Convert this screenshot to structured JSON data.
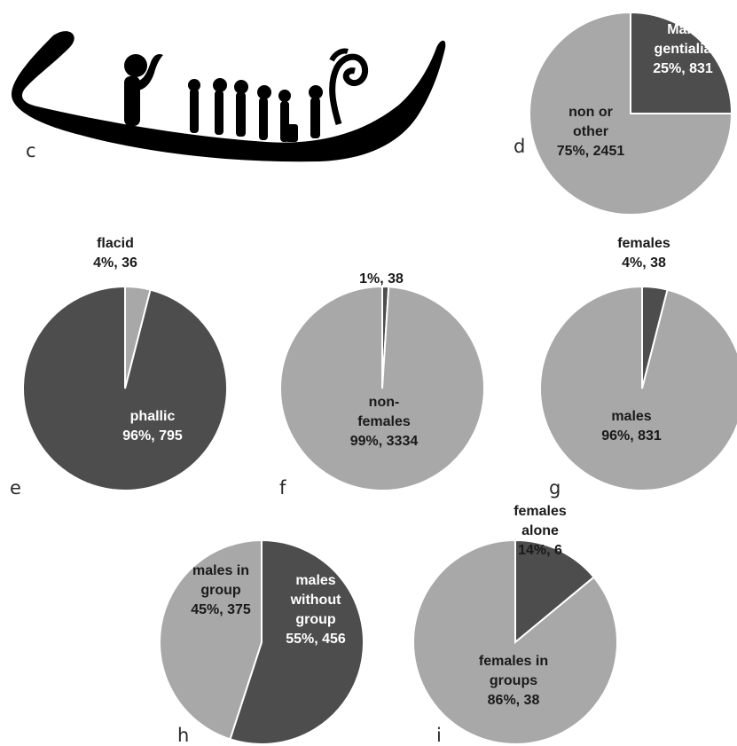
{
  "colors": {
    "dark": "#4d4d4d",
    "light": "#a8a8a8",
    "edge": "#ffffff",
    "boat": "#000000"
  },
  "panels": {
    "c": "c",
    "d": "d",
    "e": "e",
    "f": "f",
    "g": "g",
    "h": "h",
    "i": "i"
  },
  "chart_data": [
    {
      "panel": "d",
      "type": "pie",
      "slices": [
        {
          "lines": [
            "Male",
            "gentialia",
            "25%, 831"
          ],
          "value": 831,
          "percent": 25,
          "color": "dark"
        },
        {
          "lines": [
            "non or",
            "other",
            "75%, 2451"
          ],
          "value": 2451,
          "percent": 75,
          "color": "light"
        }
      ]
    },
    {
      "panel": "e",
      "type": "pie",
      "slices": [
        {
          "lines": [
            "flacid",
            "4%, 36"
          ],
          "value": 36,
          "percent": 4,
          "color": "light"
        },
        {
          "lines": [
            "phallic",
            "96%, 795"
          ],
          "value": 795,
          "percent": 96,
          "color": "dark"
        }
      ]
    },
    {
      "panel": "f",
      "type": "pie",
      "slices": [
        {
          "lines": [
            "1%, 38"
          ],
          "value": 38,
          "percent": 1,
          "color": "dark"
        },
        {
          "lines": [
            "non-",
            "females",
            "99%, 3334"
          ],
          "value": 3334,
          "percent": 99,
          "color": "light"
        }
      ]
    },
    {
      "panel": "g",
      "type": "pie",
      "slices": [
        {
          "lines": [
            "females",
            "4%, 38"
          ],
          "value": 38,
          "percent": 4,
          "color": "dark"
        },
        {
          "lines": [
            "males",
            "96%, 831"
          ],
          "value": 831,
          "percent": 96,
          "color": "light"
        }
      ]
    },
    {
      "panel": "h",
      "type": "pie",
      "slices": [
        {
          "lines": [
            "males",
            "without",
            "group",
            "55%, 456"
          ],
          "value": 456,
          "percent": 55,
          "color": "dark"
        },
        {
          "lines": [
            "males in",
            "group",
            "45%, 375"
          ],
          "value": 375,
          "percent": 45,
          "color": "light"
        }
      ]
    },
    {
      "panel": "i",
      "type": "pie",
      "slices": [
        {
          "lines": [
            "females",
            "alone",
            "14%, 6"
          ],
          "value": 6,
          "percent": 14,
          "color": "dark"
        },
        {
          "lines": [
            "females in",
            "groups",
            "86%, 38"
          ],
          "value": 38,
          "percent": 86,
          "color": "light"
        }
      ]
    }
  ]
}
